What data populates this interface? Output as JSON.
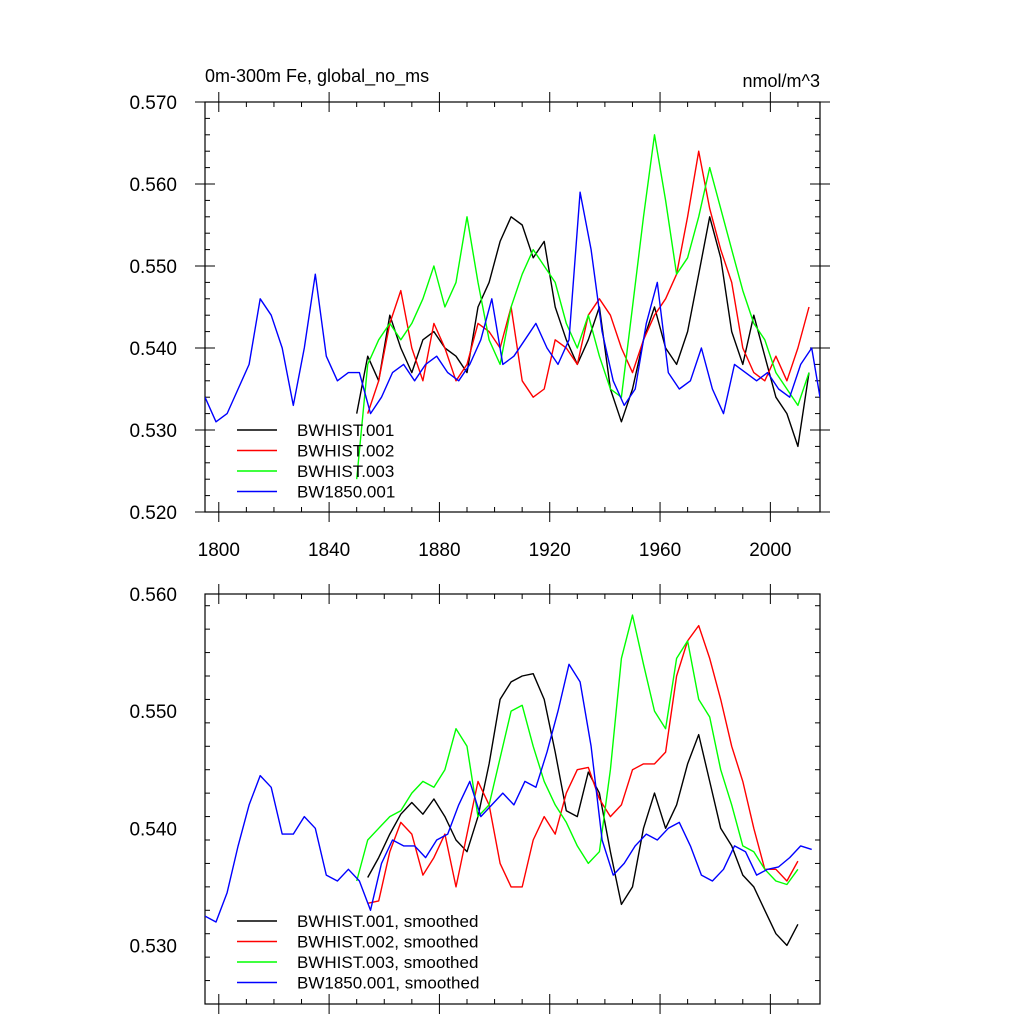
{
  "chart_data": [
    {
      "type": "line",
      "title_left": "0m-300m Fe, global_no_ms",
      "title_right": "nmol/m^3",
      "xlabel": "",
      "ylabel": "",
      "xlim": [
        1795,
        2018
      ],
      "ylim": [
        0.52,
        0.57
      ],
      "xticks": [
        1800,
        1840,
        1880,
        1920,
        1960,
        2000
      ],
      "xtick_labels": [
        "1800",
        "1840",
        "1880",
        "1920",
        "1960",
        "2000"
      ],
      "yticks": [
        0.52,
        0.53,
        0.54,
        0.55,
        0.56,
        0.57
      ],
      "ytick_labels": [
        "0.520",
        "0.530",
        "0.540",
        "0.550",
        "0.560",
        "0.570"
      ],
      "legend_position": "bottom-left",
      "series": [
        {
          "name": "BWHIST.001",
          "color": "#000000",
          "x": [
            1850,
            1854,
            1858,
            1862,
            1866,
            1870,
            1874,
            1878,
            1882,
            1886,
            1890,
            1894,
            1898,
            1902,
            1906,
            1910,
            1914,
            1918,
            1922,
            1926,
            1930,
            1934,
            1938,
            1942,
            1946,
            1950,
            1954,
            1958,
            1962,
            1966,
            1970,
            1974,
            1978,
            1982,
            1986,
            1990,
            1994,
            1998,
            2002,
            2006,
            2010,
            2014
          ],
          "y": [
            0.532,
            0.539,
            0.536,
            0.544,
            0.54,
            0.537,
            0.541,
            0.542,
            0.54,
            0.539,
            0.537,
            0.545,
            0.548,
            0.553,
            0.556,
            0.555,
            0.551,
            0.553,
            0.545,
            0.541,
            0.538,
            0.541,
            0.545,
            0.535,
            0.531,
            0.535,
            0.541,
            0.545,
            0.54,
            0.538,
            0.542,
            0.549,
            0.556,
            0.551,
            0.542,
            0.538,
            0.544,
            0.539,
            0.534,
            0.532,
            0.528,
            0.537
          ]
        },
        {
          "name": "BWHIST.002",
          "color": "#ff0000",
          "x": [
            1854,
            1858,
            1862,
            1866,
            1870,
            1874,
            1878,
            1882,
            1886,
            1890,
            1894,
            1898,
            1902,
            1906,
            1910,
            1914,
            1918,
            1922,
            1926,
            1930,
            1934,
            1938,
            1942,
            1946,
            1950,
            1954,
            1958,
            1962,
            1966,
            1970,
            1974,
            1978,
            1982,
            1986,
            1990,
            1994,
            1998,
            2002,
            2006,
            2010,
            2014
          ],
          "y": [
            0.532,
            0.536,
            0.543,
            0.547,
            0.54,
            0.536,
            0.543,
            0.54,
            0.536,
            0.538,
            0.543,
            0.542,
            0.54,
            0.545,
            0.536,
            0.534,
            0.535,
            0.541,
            0.54,
            0.538,
            0.544,
            0.546,
            0.544,
            0.54,
            0.537,
            0.541,
            0.544,
            0.546,
            0.549,
            0.556,
            0.564,
            0.557,
            0.552,
            0.548,
            0.54,
            0.537,
            0.536,
            0.539,
            0.536,
            0.54,
            0.545
          ]
        },
        {
          "name": "BWHIST.003",
          "color": "#00ff00",
          "x": [
            1850,
            1854,
            1858,
            1862,
            1866,
            1870,
            1874,
            1878,
            1882,
            1886,
            1890,
            1894,
            1898,
            1902,
            1906,
            1910,
            1914,
            1918,
            1922,
            1926,
            1930,
            1934,
            1938,
            1942,
            1946,
            1950,
            1954,
            1958,
            1962,
            1966,
            1970,
            1974,
            1978,
            1982,
            1986,
            1990,
            1994,
            1998,
            2002,
            2006,
            2010,
            2014
          ],
          "y": [
            0.524,
            0.538,
            0.541,
            0.543,
            0.541,
            0.543,
            0.546,
            0.55,
            0.545,
            0.548,
            0.556,
            0.548,
            0.541,
            0.538,
            0.545,
            0.549,
            0.552,
            0.55,
            0.548,
            0.543,
            0.54,
            0.544,
            0.539,
            0.535,
            0.534,
            0.545,
            0.556,
            0.566,
            0.558,
            0.549,
            0.551,
            0.556,
            0.562,
            0.557,
            0.552,
            0.547,
            0.543,
            0.541,
            0.537,
            0.535,
            0.533,
            0.537
          ]
        },
        {
          "name": "BW1850.001",
          "color": "#0000ff",
          "x": [
            1795,
            1799,
            1803,
            1807,
            1811,
            1815,
            1819,
            1823,
            1827,
            1831,
            1835,
            1839,
            1843,
            1847,
            1851,
            1855,
            1859,
            1863,
            1867,
            1871,
            1875,
            1879,
            1883,
            1887,
            1891,
            1895,
            1899,
            1903,
            1907,
            1911,
            1915,
            1919,
            1923,
            1927,
            1931,
            1935,
            1939,
            1943,
            1947,
            1951,
            1955,
            1959,
            1963,
            1967,
            1971,
            1975,
            1979,
            1983,
            1987,
            1991,
            1995,
            1999,
            2003,
            2007,
            2011,
            2015,
            2018
          ],
          "y": [
            0.534,
            0.531,
            0.532,
            0.535,
            0.538,
            0.546,
            0.544,
            0.54,
            0.533,
            0.54,
            0.549,
            0.539,
            0.536,
            0.537,
            0.537,
            0.532,
            0.534,
            0.537,
            0.538,
            0.536,
            0.538,
            0.539,
            0.537,
            0.536,
            0.538,
            0.541,
            0.546,
            0.538,
            0.539,
            0.541,
            0.543,
            0.54,
            0.538,
            0.541,
            0.559,
            0.552,
            0.542,
            0.536,
            0.533,
            0.535,
            0.543,
            0.548,
            0.537,
            0.535,
            0.536,
            0.54,
            0.535,
            0.532,
            0.538,
            0.537,
            0.536,
            0.537,
            0.535,
            0.534,
            0.538,
            0.54,
            0.534
          ]
        }
      ]
    },
    {
      "type": "line",
      "title_left": "",
      "title_right": "",
      "xlabel": "",
      "ylabel": "",
      "xlim": [
        1795,
        2018
      ],
      "ylim": [
        0.525,
        0.56
      ],
      "xticks": [
        1800,
        1840,
        1880,
        1920,
        1960,
        2000
      ],
      "xtick_labels": [],
      "yticks": [
        0.53,
        0.54,
        0.55,
        0.56
      ],
      "ytick_labels": [
        "0.530",
        "0.540",
        "0.550",
        "0.560"
      ],
      "legend_position": "bottom-left",
      "series": [
        {
          "name": "BWHIST.001, smoothed",
          "color": "#000000",
          "x": [
            1854,
            1858,
            1862,
            1866,
            1870,
            1874,
            1878,
            1882,
            1886,
            1890,
            1894,
            1898,
            1902,
            1906,
            1910,
            1914,
            1918,
            1922,
            1926,
            1930,
            1934,
            1938,
            1942,
            1946,
            1950,
            1954,
            1958,
            1962,
            1966,
            1970,
            1974,
            1978,
            1982,
            1986,
            1990,
            1994,
            1998,
            2002,
            2006,
            2010
          ],
          "y": [
            0.5358,
            0.5375,
            0.5395,
            0.5412,
            0.5422,
            0.5412,
            0.5425,
            0.541,
            0.539,
            0.538,
            0.541,
            0.5455,
            0.551,
            0.5525,
            0.553,
            0.5532,
            0.551,
            0.5465,
            0.5415,
            0.541,
            0.5448,
            0.543,
            0.538,
            0.5335,
            0.535,
            0.54,
            0.543,
            0.54,
            0.542,
            0.5455,
            0.548,
            0.544,
            0.54,
            0.5385,
            0.536,
            0.535,
            0.533,
            0.531,
            0.53,
            0.5318
          ]
        },
        {
          "name": "BWHIST.002, smoothed",
          "color": "#ff0000",
          "x": [
            1854,
            1858,
            1862,
            1866,
            1870,
            1874,
            1878,
            1882,
            1886,
            1890,
            1894,
            1898,
            1902,
            1906,
            1910,
            1914,
            1918,
            1922,
            1926,
            1930,
            1934,
            1938,
            1942,
            1946,
            1950,
            1954,
            1958,
            1962,
            1966,
            1970,
            1974,
            1978,
            1982,
            1986,
            1990,
            1994,
            1998,
            2002,
            2006,
            2010
          ],
          "y": [
            0.5336,
            0.5338,
            0.538,
            0.5405,
            0.5395,
            0.536,
            0.5375,
            0.5395,
            0.535,
            0.5395,
            0.544,
            0.542,
            0.537,
            0.535,
            0.535,
            0.539,
            0.541,
            0.5395,
            0.543,
            0.545,
            0.5452,
            0.5425,
            0.541,
            0.542,
            0.545,
            0.5455,
            0.5455,
            0.5465,
            0.553,
            0.556,
            0.5573,
            0.5545,
            0.551,
            0.547,
            0.544,
            0.54,
            0.5365,
            0.5365,
            0.5355,
            0.5372
          ]
        },
        {
          "name": "BWHIST.003, smoothed",
          "color": "#00ff00",
          "x": [
            1850,
            1854,
            1858,
            1862,
            1866,
            1870,
            1874,
            1878,
            1882,
            1886,
            1890,
            1894,
            1898,
            1902,
            1906,
            1910,
            1914,
            1918,
            1922,
            1926,
            1930,
            1934,
            1938,
            1942,
            1946,
            1950,
            1954,
            1958,
            1962,
            1966,
            1970,
            1974,
            1978,
            1982,
            1986,
            1990,
            1994,
            1998,
            2002,
            2006,
            2010
          ],
          "y": [
            0.5355,
            0.539,
            0.54,
            0.541,
            0.5415,
            0.543,
            0.544,
            0.5435,
            0.545,
            0.5485,
            0.547,
            0.541,
            0.542,
            0.546,
            0.55,
            0.5505,
            0.547,
            0.544,
            0.542,
            0.5405,
            0.5385,
            0.537,
            0.538,
            0.545,
            0.5545,
            0.5582,
            0.554,
            0.55,
            0.5485,
            0.5545,
            0.556,
            0.551,
            0.5495,
            0.545,
            0.542,
            0.5385,
            0.538,
            0.5365,
            0.5355,
            0.5352,
            0.5365
          ]
        },
        {
          "name": "BW1850.001, smoothed",
          "color": "#0000ff",
          "x": [
            1795,
            1799,
            1803,
            1807,
            1811,
            1815,
            1819,
            1823,
            1827,
            1831,
            1835,
            1839,
            1843,
            1847,
            1851,
            1855,
            1859,
            1863,
            1867,
            1871,
            1875,
            1879,
            1883,
            1887,
            1891,
            1895,
            1899,
            1903,
            1907,
            1911,
            1915,
            1919,
            1923,
            1927,
            1931,
            1935,
            1939,
            1943,
            1947,
            1951,
            1955,
            1959,
            1963,
            1967,
            1971,
            1975,
            1979,
            1983,
            1987,
            1991,
            1995,
            1999,
            2003,
            2007,
            2011,
            2015
          ],
          "y": [
            0.5325,
            0.532,
            0.5345,
            0.5385,
            0.542,
            0.5445,
            0.5435,
            0.5395,
            0.5395,
            0.541,
            0.54,
            0.536,
            0.5355,
            0.5365,
            0.5355,
            0.533,
            0.537,
            0.539,
            0.5385,
            0.5385,
            0.5375,
            0.539,
            0.5395,
            0.542,
            0.544,
            0.541,
            0.542,
            0.543,
            0.542,
            0.544,
            0.5435,
            0.5465,
            0.55,
            0.554,
            0.5525,
            0.547,
            0.539,
            0.536,
            0.537,
            0.5385,
            0.5395,
            0.539,
            0.54,
            0.5405,
            0.5385,
            0.536,
            0.5355,
            0.5365,
            0.5385,
            0.538,
            0.536,
            0.5365,
            0.5367,
            0.5375,
            0.5385,
            0.5382
          ]
        }
      ]
    }
  ]
}
